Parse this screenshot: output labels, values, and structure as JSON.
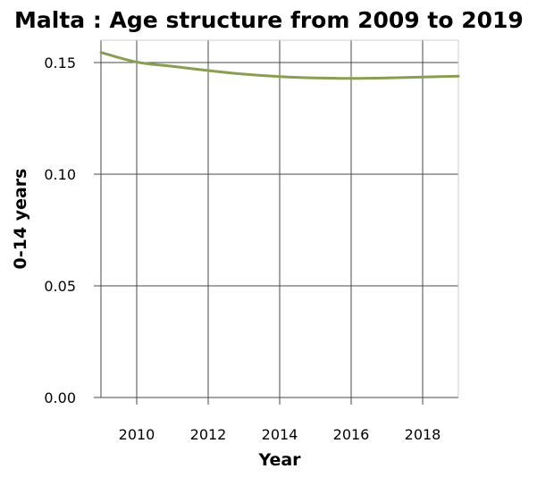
{
  "chart_data": {
    "type": "line",
    "title": "Malta : Age structure from 2009 to 2019",
    "xlabel": "Year",
    "ylabel": "0-14 years",
    "xlim": [
      2009,
      2019
    ],
    "ylim": [
      0,
      0.15
    ],
    "xticks": [
      2010,
      2012,
      2014,
      2016,
      2018
    ],
    "xtick_labels": [
      "2010",
      "2012",
      "2014",
      "2016",
      "2018"
    ],
    "yticks": [
      0,
      0.05,
      0.1,
      0.15
    ],
    "ytick_labels": [
      "0.00",
      "0.05",
      "0.10",
      "0.15"
    ],
    "grid": true,
    "legend": "none",
    "series": [
      {
        "color": "#8a9e52",
        "x": [
          2009,
          2010,
          2011,
          2012,
          2013,
          2014,
          2015,
          2016,
          2017,
          2018,
          2019
        ],
        "values": [
          0.1545,
          0.1502,
          0.1483,
          0.1464,
          0.1448,
          0.1437,
          0.1431,
          0.1429,
          0.1431,
          0.1435,
          0.1439
        ]
      }
    ]
  }
}
